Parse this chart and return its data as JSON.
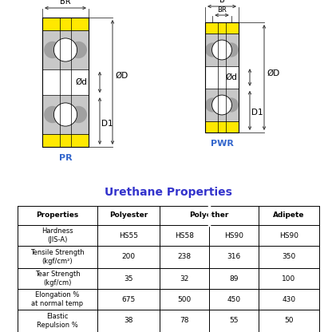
{
  "title": "Urethane Properties",
  "title_color": "#3333cc",
  "bg_color": "#ffffff",
  "pr_label": "PR",
  "pwr_label": "PWR",
  "label_color": "#3366cc",
  "yellow_color": "#FFE800",
  "gray_color": "#C8C8C8",
  "gray_dark": "#A0A0A0",
  "gray_mid": "#B8B8B8",
  "line_color": "#555555",
  "black": "#000000",
  "table_data": [
    [
      "Properties",
      "Polyester",
      "Polyether",
      "",
      "Adipete"
    ],
    [
      "Hardness\n(JIS-A)",
      "HS55",
      "HS58",
      "HS90",
      "HS90"
    ],
    [
      "Tensile Strength\n(kgf/cm²)",
      "200",
      "238",
      "316",
      "350"
    ],
    [
      "Tear Strength\n(kgf/cm)",
      "35",
      "32",
      "89",
      "100"
    ],
    [
      "Elongation %\nat normal temp",
      "675",
      "500",
      "450",
      "430"
    ],
    [
      "Elastic\nRepulsion %",
      "38",
      "78",
      "55",
      "50"
    ]
  ]
}
